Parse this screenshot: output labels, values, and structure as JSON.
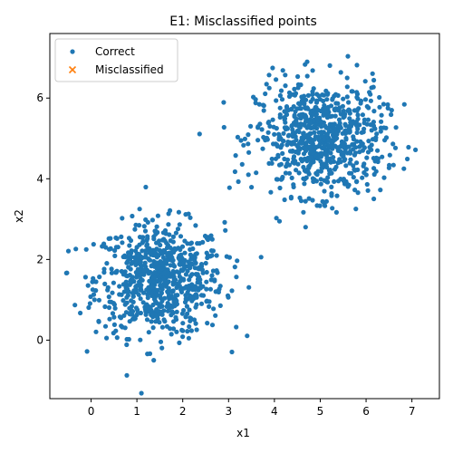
{
  "chart_data": {
    "type": "scatter",
    "title": "E1: Misclassified points",
    "xlabel": "x1",
    "ylabel": "x2",
    "xlim": [
      -0.9,
      7.6
    ],
    "ylim": [
      -1.45,
      7.6
    ],
    "xticks": [
      0,
      1,
      2,
      3,
      4,
      5,
      6,
      7
    ],
    "yticks": [
      0,
      2,
      4,
      6
    ],
    "grid": false,
    "legend": "top-left",
    "series": [
      {
        "name": "Correct",
        "marker": "circle",
        "color": "#1f77b4",
        "clusters": [
          {
            "center": [
              1.5,
              1.5
            ],
            "std": 0.7,
            "count": 750
          },
          {
            "center": [
              5.0,
              5.0
            ],
            "std": 0.7,
            "count": 750
          }
        ]
      },
      {
        "name": "Misclassified",
        "marker": "x",
        "color": "#ff7f0e",
        "points": []
      }
    ]
  }
}
